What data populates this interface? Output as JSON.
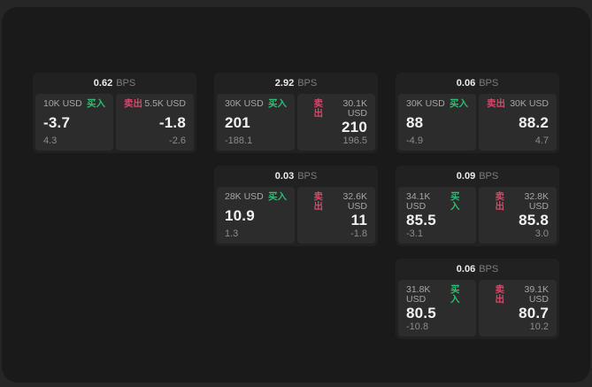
{
  "labels": {
    "bps": "BPS",
    "buy": "买入",
    "sell": "卖出"
  },
  "colors": {
    "buy": "#2ebd72",
    "sell": "#d14a6a",
    "surface": "#1a1a1a",
    "card": "#212121",
    "tile": "#2c2c2c"
  },
  "cards": [
    {
      "row": 0,
      "col": 0,
      "bps": "0.62",
      "buy_size": "10K USD",
      "buy_price": "-3.7",
      "buy_delta": "4.3",
      "sell_size": "5.5K USD",
      "sell_price": "-1.8",
      "sell_delta": "-2.6"
    },
    {
      "row": 0,
      "col": 1,
      "bps": "2.92",
      "buy_size": "30K USD",
      "buy_price": "201",
      "buy_delta": "-188.1",
      "sell_size": "30.1K USD",
      "sell_price": "210",
      "sell_delta": "196.5"
    },
    {
      "row": 0,
      "col": 2,
      "bps": "0.06",
      "buy_size": "30K USD",
      "buy_price": "88",
      "buy_delta": "-4.9",
      "sell_size": "30K USD",
      "sell_price": "88.2",
      "sell_delta": "4.7"
    },
    {
      "row": 1,
      "col": 1,
      "bps": "0.03",
      "buy_size": "28K USD",
      "buy_price": "10.9",
      "buy_delta": "1.3",
      "sell_size": "32.6K USD",
      "sell_price": "11",
      "sell_delta": "-1.8"
    },
    {
      "row": 1,
      "col": 2,
      "bps": "0.09",
      "buy_size": "34.1K USD",
      "buy_price": "85.5",
      "buy_delta": "-3.1",
      "sell_size": "32.8K USD",
      "sell_price": "85.8",
      "sell_delta": "3.0"
    },
    {
      "row": 2,
      "col": 2,
      "bps": "0.06",
      "buy_size": "31.8K USD",
      "buy_price": "80.5",
      "buy_delta": "-10.8",
      "sell_size": "39.1K USD",
      "sell_price": "80.7",
      "sell_delta": "10.2"
    }
  ]
}
